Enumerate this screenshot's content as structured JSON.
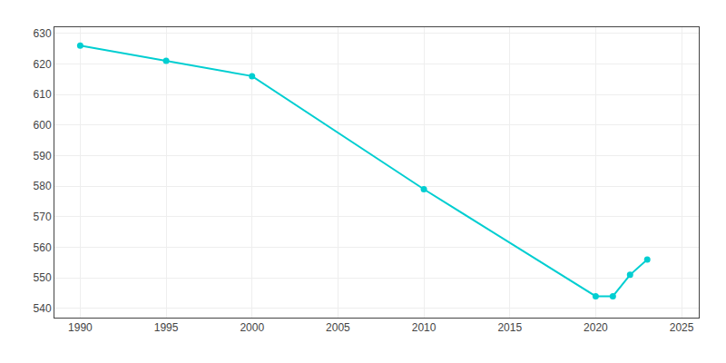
{
  "chart_data": {
    "type": "line",
    "x": [
      1990,
      1995,
      2000,
      2010,
      2020,
      2021,
      2022,
      2023
    ],
    "values": [
      626,
      621,
      616,
      579,
      544,
      544,
      551,
      556
    ],
    "color": "#00CED1",
    "marker": "circle",
    "xlim": [
      1988.5,
      2026
    ],
    "ylim": [
      537,
      632
    ],
    "xticks": [
      1990,
      1995,
      2000,
      2005,
      2010,
      2015,
      2020,
      2025
    ],
    "yticks": [
      540,
      550,
      560,
      570,
      580,
      590,
      600,
      610,
      620,
      630
    ],
    "grid": true
  }
}
